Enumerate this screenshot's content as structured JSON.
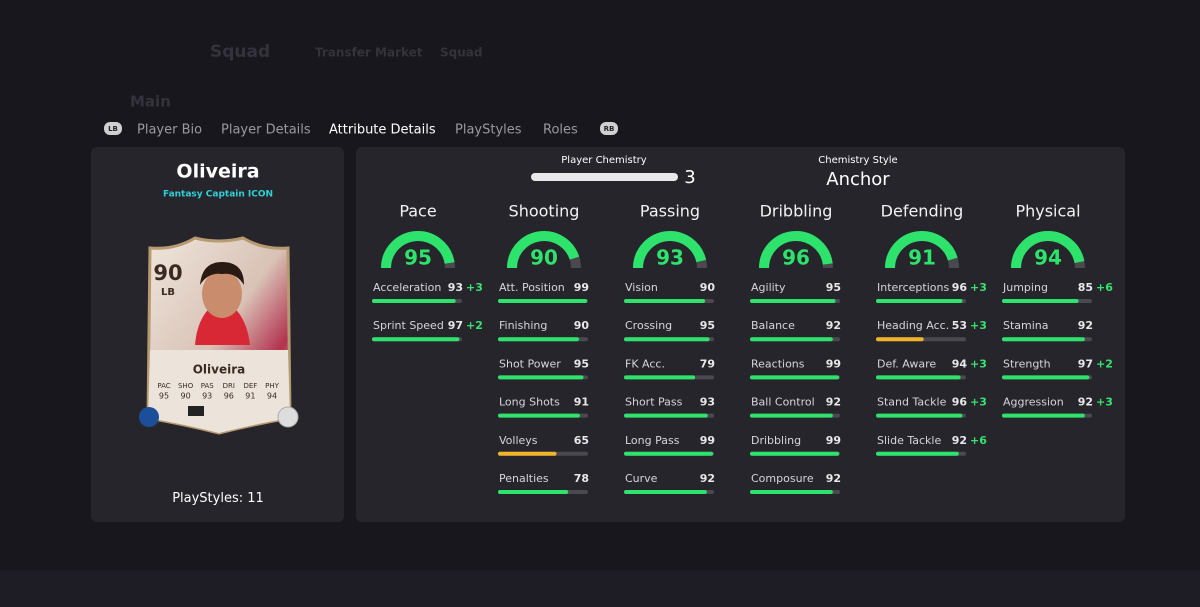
{
  "background": {
    "nav": [
      "Squad",
      "Transfer Market",
      "Squad"
    ],
    "section": "Main"
  },
  "tabs": {
    "left_button": "LB",
    "items": [
      "Player Bio",
      "Player Details",
      "Attribute Details",
      "PlayStyles",
      "Roles"
    ],
    "right_button": "RB"
  },
  "player": {
    "name": "Oliveira",
    "version": "Fantasy Captain ICON",
    "card": {
      "rating": 90,
      "position": "LB",
      "name": "Oliveira",
      "stat_labels": [
        "PAC",
        "SHO",
        "PAS",
        "DRI",
        "DEF",
        "PHY"
      ],
      "stat_values": [
        95,
        90,
        93,
        96,
        91,
        94
      ]
    },
    "playstyles_label": "PlayStyles:",
    "playstyles": 11
  },
  "chemistry": {
    "label": "Player Chemistry",
    "value": 3,
    "style_label": "Chemistry Style",
    "style": "Anchor"
  },
  "categories": [
    {
      "name": "Pace",
      "value": 95,
      "attributes": [
        {
          "name": "Acceleration",
          "value": 93,
          "boost": "+3"
        },
        {
          "name": "Sprint Speed",
          "value": 97,
          "boost": "+2"
        }
      ]
    },
    {
      "name": "Shooting",
      "value": 90,
      "attributes": [
        {
          "name": "Att. Position",
          "value": 99
        },
        {
          "name": "Finishing",
          "value": 90
        },
        {
          "name": "Shot Power",
          "value": 95
        },
        {
          "name": "Long Shots",
          "value": 91
        },
        {
          "name": "Volleys",
          "value": 65
        },
        {
          "name": "Penalties",
          "value": 78
        }
      ]
    },
    {
      "name": "Passing",
      "value": 93,
      "attributes": [
        {
          "name": "Vision",
          "value": 90
        },
        {
          "name": "Crossing",
          "value": 95
        },
        {
          "name": "FK Acc.",
          "value": 79
        },
        {
          "name": "Short Pass",
          "value": 93
        },
        {
          "name": "Long Pass",
          "value": 99
        },
        {
          "name": "Curve",
          "value": 92
        }
      ]
    },
    {
      "name": "Dribbling",
      "value": 96,
      "attributes": [
        {
          "name": "Agility",
          "value": 95
        },
        {
          "name": "Balance",
          "value": 92
        },
        {
          "name": "Reactions",
          "value": 99
        },
        {
          "name": "Ball Control",
          "value": 92
        },
        {
          "name": "Dribbling",
          "value": 99
        },
        {
          "name": "Composure",
          "value": 92
        }
      ]
    },
    {
      "name": "Defending",
      "value": 91,
      "attributes": [
        {
          "name": "Interceptions",
          "value": 96,
          "boost": "+3"
        },
        {
          "name": "Heading Acc.",
          "value": 53,
          "boost": "+3"
        },
        {
          "name": "Def. Aware",
          "value": 94,
          "boost": "+3"
        },
        {
          "name": "Stand Tackle",
          "value": 96,
          "boost": "+3"
        },
        {
          "name": "Slide Tackle",
          "value": 92,
          "boost": "+6"
        }
      ]
    },
    {
      "name": "Physical",
      "value": 94,
      "attributes": [
        {
          "name": "Jumping",
          "value": 85,
          "boost": "+6"
        },
        {
          "name": "Stamina",
          "value": 92
        },
        {
          "name": "Strength",
          "value": 97,
          "boost": "+2"
        },
        {
          "name": "Aggression",
          "value": 92,
          "boost": "+3"
        }
      ]
    }
  ]
}
